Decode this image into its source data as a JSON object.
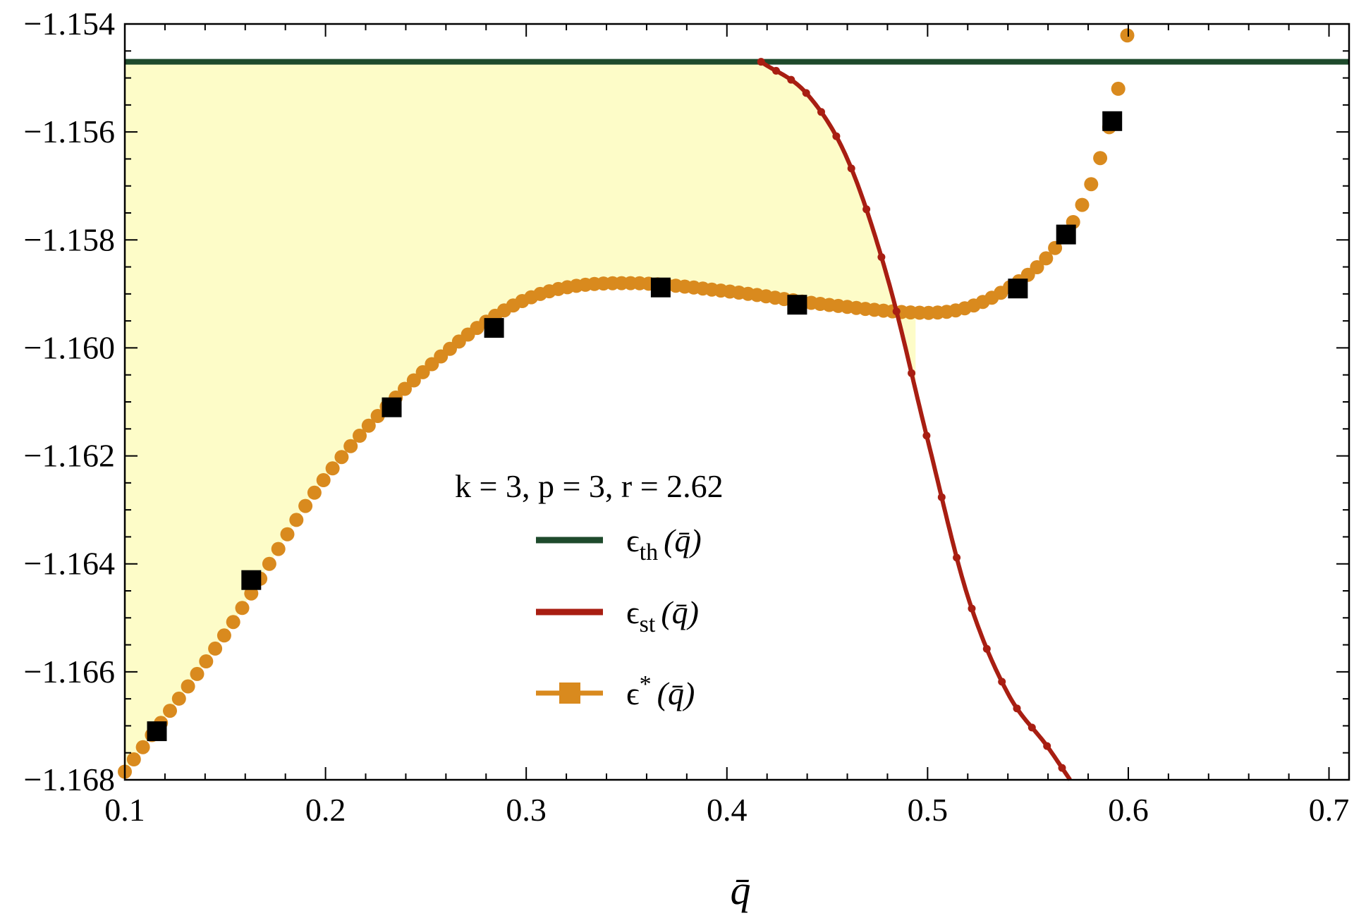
{
  "chart_data": {
    "type": "line",
    "xlabel": "q̄",
    "xlim": [
      0.1,
      0.71
    ],
    "ylim": [
      -1.168,
      -1.154
    ],
    "x_ticks": [
      0.1,
      0.2,
      0.3,
      0.4,
      0.5,
      0.6,
      0.7
    ],
    "x_tick_labels": [
      "0.1",
      "0.2",
      "0.3",
      "0.4",
      "0.5",
      "0.6",
      "0.7"
    ],
    "y_ticks": [
      -1.168,
      -1.166,
      -1.164,
      -1.162,
      -1.16,
      -1.158,
      -1.156,
      -1.154
    ],
    "y_tick_labels": [
      "−1.168",
      "−1.166",
      "−1.164",
      "−1.162",
      "−1.160",
      "−1.158",
      "−1.156",
      "−1.154"
    ],
    "grid": false,
    "legend_title": "k = 3, p = 3, r = 2.62",
    "legend_position": "center",
    "colors": {
      "th": "#1e4a2c",
      "st": "#a81e12",
      "star": "#d98a1e",
      "squares": "#000000",
      "fill": "#fdfcc8"
    },
    "series": [
      {
        "name": "ε_th (q̄)",
        "legend_main": "ϵ",
        "legend_sub": "th",
        "legend_arg": "(q̄)",
        "style": "line",
        "x": [
          0.1,
          0.71
        ],
        "y": [
          -1.1547,
          -1.1547
        ]
      },
      {
        "name": "ε_st (q̄)",
        "legend_main": "ϵ",
        "legend_sub": "st",
        "legend_arg": "(q̄)",
        "style": "line-dots",
        "x": [
          0.417,
          0.44,
          0.46,
          0.48,
          0.5,
          0.52,
          0.54,
          0.56,
          0.571
        ],
        "y": [
          -1.1547,
          -1.1553,
          -1.1565,
          -1.1587,
          -1.1617,
          -1.1646,
          -1.1664,
          -1.1674,
          -1.168
        ]
      },
      {
        "name": "ε* (q̄)",
        "legend_main": "ϵ",
        "legend_sup": "*",
        "legend_arg": "(q̄)",
        "style": "dots",
        "x": [
          0.1,
          0.15,
          0.2,
          0.25,
          0.3,
          0.35,
          0.4,
          0.45,
          0.5,
          0.52,
          0.54,
          0.56,
          0.575,
          0.585,
          0.595,
          0.6
        ],
        "y": [
          -1.16785,
          -1.1653,
          -1.1624,
          -1.1604,
          -1.1591,
          -1.1588,
          -1.15895,
          -1.1592,
          -1.15935,
          -1.15925,
          -1.1589,
          -1.1583,
          -1.1575,
          -1.1566,
          -1.1552,
          -1.1541
        ]
      },
      {
        "name": "ε* (q̄) markers",
        "style": "squares",
        "x": [
          0.116,
          0.163,
          0.233,
          0.284,
          0.367,
          0.435,
          0.545,
          0.569,
          0.592
        ],
        "y": [
          -1.1671,
          -1.1643,
          -1.1611,
          -1.15963,
          -1.15888,
          -1.1592,
          -1.1589,
          -1.1579,
          -1.1558
        ]
      }
    ]
  }
}
